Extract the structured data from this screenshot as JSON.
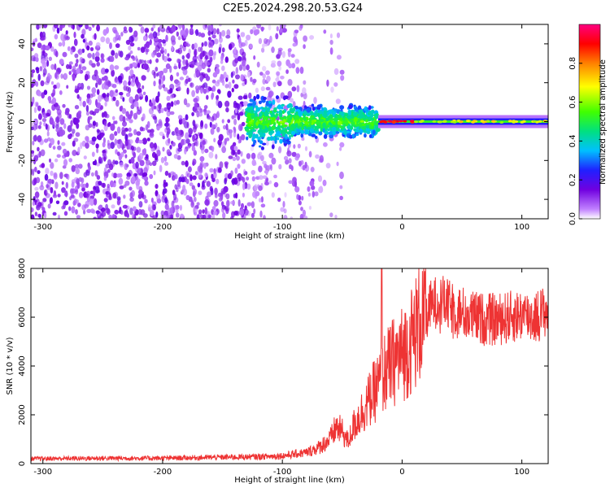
{
  "title": "C2E5.2024.298.20.53.G24",
  "chart_data": [
    {
      "type": "heatmap",
      "xlabel": "Height of straight line (km)",
      "ylabel": "Frequency (Hz)",
      "xlim": [
        -310,
        122
      ],
      "ylim": [
        -50,
        50
      ],
      "xticks": [
        -300,
        -200,
        -100,
        0,
        100
      ],
      "yticks": [
        -40,
        -20,
        0,
        20,
        40
      ],
      "colorbar": {
        "label": "Normalized spectral amplitude",
        "range": [
          0,
          1
        ],
        "ticks": [
          0.0,
          0.2,
          0.4,
          0.6,
          0.8
        ],
        "colors": [
          "#ffffff",
          "#c080ff",
          "#7000e0",
          "#2020ff",
          "#00c0ff",
          "#00e060",
          "#80ff00",
          "#ffff00",
          "#ff8000",
          "#ff0000",
          "#ff0080"
        ]
      },
      "features": {
        "noisy_region_x": [
          -310,
          -80
        ],
        "signal_line_frequency": 0,
        "signal_line_x": [
          -20,
          122
        ]
      }
    },
    {
      "type": "line",
      "xlabel": "Height of straight line (km)",
      "ylabel": "SNR (10 * v/v)",
      "xlim": [
        -310,
        122
      ],
      "ylim": [
        0,
        8000
      ],
      "xticks": [
        -300,
        -200,
        -100,
        0,
        100
      ],
      "yticks": [
        0,
        2000,
        4000,
        6000,
        8000
      ],
      "series": [
        {
          "color": "#ee3333",
          "x": [
            -310,
            -250,
            -200,
            -150,
            -120,
            -100,
            -80,
            -70,
            -60,
            -55,
            -50,
            -45,
            -40,
            -35,
            -30,
            -25,
            -20,
            -15,
            -10,
            -5,
            0,
            5,
            10,
            15,
            20,
            25,
            30,
            35,
            40,
            50,
            60,
            70,
            80,
            90,
            100,
            110,
            122
          ],
          "values": [
            200,
            220,
            220,
            260,
            280,
            320,
            450,
            650,
            1000,
            1500,
            1300,
            900,
            1600,
            2000,
            2400,
            2800,
            3200,
            3700,
            4000,
            4300,
            4500,
            4800,
            5300,
            5800,
            6200,
            6500,
            6700,
            6600,
            6400,
            6200,
            6000,
            5900,
            5900,
            6000,
            6100,
            6000,
            6300
          ]
        }
      ]
    }
  ]
}
